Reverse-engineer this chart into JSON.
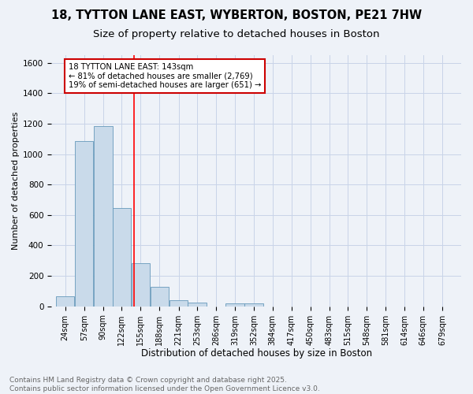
{
  "title1": "18, TYTTON LANE EAST, WYBERTON, BOSTON, PE21 7HW",
  "title2": "Size of property relative to detached houses in Boston",
  "xlabel": "Distribution of detached houses by size in Boston",
  "ylabel": "Number of detached properties",
  "bin_labels": [
    "24sqm",
    "57sqm",
    "90sqm",
    "122sqm",
    "155sqm",
    "188sqm",
    "221sqm",
    "253sqm",
    "286sqm",
    "319sqm",
    "352sqm",
    "384sqm",
    "417sqm",
    "450sqm",
    "483sqm",
    "515sqm",
    "548sqm",
    "581sqm",
    "614sqm",
    "646sqm",
    "679sqm"
  ],
  "bin_centers": [
    24,
    57,
    90,
    122,
    155,
    188,
    221,
    253,
    286,
    319,
    352,
    384,
    417,
    450,
    483,
    515,
    548,
    581,
    614,
    646,
    679
  ],
  "bin_width": 33,
  "bar_heights": [
    65,
    1085,
    1185,
    645,
    285,
    130,
    40,
    25,
    0,
    20,
    20,
    0,
    0,
    0,
    0,
    0,
    0,
    0,
    0,
    0,
    0
  ],
  "bar_color": "#c9daea",
  "bar_edge_color": "#6699bb",
  "property_size": 143,
  "annotation_line1": "18 TYTTON LANE EAST: 143sqm",
  "annotation_line2": "← 81% of detached houses are smaller (2,769)",
  "annotation_line3": "19% of semi-detached houses are larger (651) →",
  "annotation_box_color": "#ffffff",
  "annotation_border_color": "#cc0000",
  "ylim": [
    0,
    1650
  ],
  "xlim": [
    0,
    712
  ],
  "yticks": [
    0,
    200,
    400,
    600,
    800,
    1000,
    1200,
    1400,
    1600
  ],
  "grid_color": "#c8d4e8",
  "background_color": "#eef2f8",
  "footer1": "Contains HM Land Registry data © Crown copyright and database right 2025.",
  "footer2": "Contains public sector information licensed under the Open Government Licence v3.0.",
  "title_fontsize": 10.5,
  "subtitle_fontsize": 9.5,
  "footer_fontsize": 6.5,
  "tick_fontsize": 7,
  "ylabel_fontsize": 8,
  "xlabel_fontsize": 8.5
}
